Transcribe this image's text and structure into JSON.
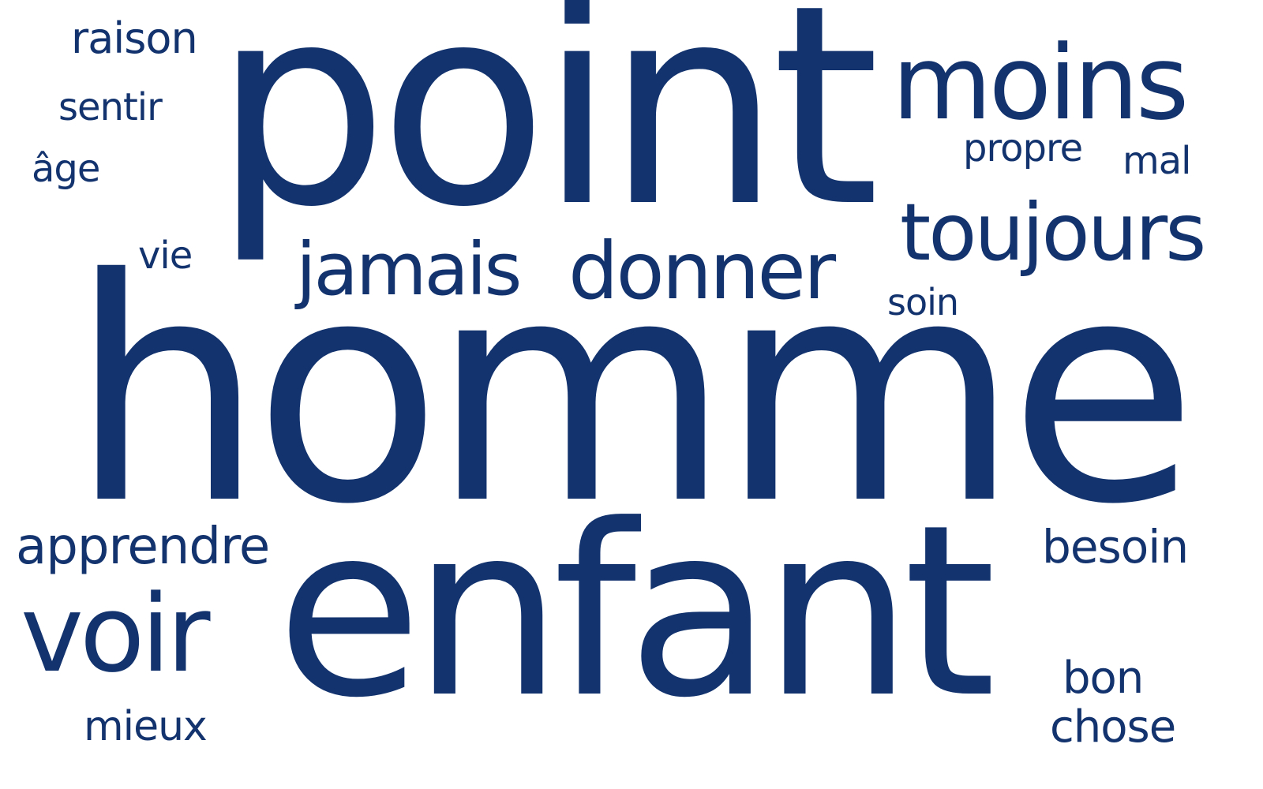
{
  "word_cloud": {
    "color": "#13336e",
    "background": "#ffffff",
    "words": {
      "homme": "homme",
      "point": "point",
      "enfant": "enfant",
      "moins": "moins",
      "toujours": "toujours",
      "voir": "voir",
      "donner": "donner",
      "jamais": "jamais",
      "apprendre": "apprendre",
      "besoin": "besoin",
      "bon": "bon",
      "chose": "chose",
      "mieux": "mieux",
      "raison": "raison",
      "sentir": "sentir",
      "age": "âge",
      "vie": "vie",
      "propre": "propre",
      "mal": "mal",
      "soin": "soin"
    }
  }
}
